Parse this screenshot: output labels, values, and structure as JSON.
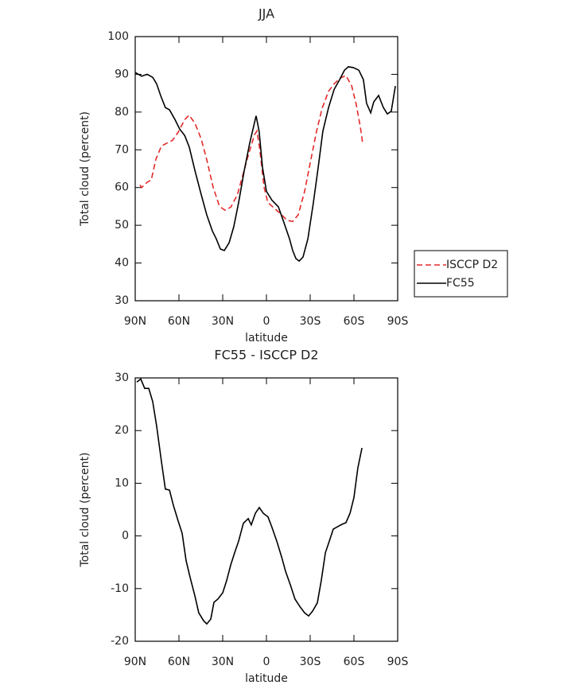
{
  "chart_data": [
    {
      "type": "line",
      "title": "JJA",
      "x_label": "latitude",
      "y_label": "Total cloud (percent)",
      "xlim": [
        90,
        -90
      ],
      "xticks": [
        {
          "value": 90,
          "label": "90N"
        },
        {
          "value": 60,
          "label": "60N"
        },
        {
          "value": 30,
          "label": "30N"
        },
        0,
        {
          "value": -30,
          "label": "30S"
        },
        {
          "value": -60,
          "label": "60S"
        },
        {
          "value": -90,
          "label": "90S"
        }
      ],
      "ylim": [
        30,
        100
      ],
      "yticks": [
        30,
        40,
        50,
        60,
        70,
        80,
        90,
        100
      ],
      "legend": "right",
      "series": [
        {
          "name": "ISCCP D2",
          "color": "#e32b2b",
          "line_style": "dashed",
          "x": [
            86.7,
            85.6,
            81.8,
            79,
            75.8,
            72,
            68,
            64.4,
            60.5,
            56,
            53,
            49,
            44.7,
            41,
            36.5,
            32.2,
            28.4,
            24.5,
            20,
            16.4,
            12.5,
            8.2,
            6.5,
            4.4,
            1.6,
            -1,
            -5.5,
            -9.8,
            -14.2,
            -18,
            -21.8,
            -26.2,
            -30,
            -34.4,
            -38.2,
            -42.6,
            -46.4,
            -50.7,
            -54.5,
            -58.4,
            -61.6,
            -64.4,
            -66
          ],
          "values": [
            60.7,
            60,
            61.4,
            62,
            67.5,
            71,
            71.8,
            72.5,
            74.7,
            78,
            79.2,
            77,
            72.8,
            67.5,
            60,
            55,
            54,
            54.8,
            58,
            63,
            68.5,
            74,
            75,
            69.6,
            60,
            56,
            54.5,
            53,
            51.3,
            51,
            52.8,
            59,
            66.5,
            75,
            81,
            85.5,
            87.5,
            89,
            89.7,
            87,
            82,
            76,
            71.7
          ]
        },
        {
          "name": "FC55",
          "color": "#000000",
          "line_style": "solid",
          "x": [
            90,
            85.6,
            81.8,
            78,
            75.3,
            72.5,
            69.3,
            66.5,
            62.7,
            59.5,
            56.1,
            52.9,
            49,
            45.3,
            40.9,
            37.1,
            34.4,
            31.6,
            28.9,
            25.6,
            22.4,
            19.1,
            15.3,
            11.5,
            7.1,
            5,
            2.7,
            0,
            -3.8,
            -8.2,
            -12,
            -15.8,
            -18,
            -20.2,
            -22.4,
            -25.1,
            -28.4,
            -32.2,
            -35.5,
            -38.7,
            -42.6,
            -46.4,
            -50.2,
            -53.5,
            -56.2,
            -59.5,
            -63.3,
            -66.5,
            -68.7,
            -71.5,
            -73.6,
            -76.9,
            -80.2,
            -82.9,
            -85.6,
            -88.4
          ],
          "values": [
            90.5,
            89.5,
            90,
            89.2,
            87.5,
            84.3,
            81.2,
            80.6,
            78,
            75.5,
            73.8,
            70.7,
            64.4,
            59,
            52.7,
            48.5,
            46.4,
            43.7,
            43.3,
            45.4,
            49.6,
            56,
            64.4,
            71.7,
            79,
            74.9,
            65.4,
            59,
            56.6,
            54.9,
            50.7,
            46.4,
            43.3,
            41.2,
            40.5,
            41.6,
            46.4,
            56,
            65.4,
            74.9,
            81.2,
            86,
            88.6,
            91.1,
            92,
            91.8,
            91.1,
            88.6,
            82.3,
            79.8,
            82.7,
            84.4,
            81.2,
            79.5,
            80.2,
            86.9
          ]
        }
      ]
    },
    {
      "type": "line",
      "title": "FC55 - ISCCP D2",
      "x_label": "latitude",
      "y_label": "Total cloud (percent)",
      "xlim": [
        90,
        -90
      ],
      "xticks": [
        {
          "value": 90,
          "label": "90N"
        },
        {
          "value": 60,
          "label": "60N"
        },
        {
          "value": 30,
          "label": "30N"
        },
        0,
        {
          "value": -30,
          "label": "30S"
        },
        {
          "value": -60,
          "label": "60S"
        },
        {
          "value": -90,
          "label": "90S"
        }
      ],
      "ylim": [
        -20,
        30
      ],
      "yticks": [
        -20,
        -10,
        0,
        10,
        20,
        30
      ],
      "series": [
        {
          "color": "#000000",
          "line_style": "solid",
          "x": [
            88.9,
            86.2,
            83.5,
            80.7,
            78,
            75.3,
            72,
            69.3,
            66.5,
            63.8,
            60.5,
            57.8,
            55.1,
            52.4,
            49,
            46.4,
            43.1,
            40.9,
            38.2,
            36,
            33.3,
            30,
            27.3,
            24.5,
            21.8,
            19.1,
            15.8,
            12.5,
            10.4,
            7.6,
            4.9,
            2.2,
            -1.1,
            -3.8,
            -7.1,
            -10.4,
            -13.1,
            -16.4,
            -19.6,
            -22.9,
            -26.2,
            -28.9,
            -31.6,
            -34.9,
            -37.6,
            -40.4,
            -43.1,
            -45.8,
            -49.1,
            -51.8,
            -54.5,
            -57.3,
            -60,
            -62.7,
            -65.5
          ],
          "values": [
            29.2,
            29.8,
            28,
            28,
            25.5,
            20.9,
            14.1,
            8.9,
            8.7,
            5.8,
            2.8,
            0.5,
            -4.7,
            -7.8,
            -11.5,
            -14.6,
            -16.1,
            -16.7,
            -15.8,
            -12.6,
            -12,
            -10.8,
            -8.5,
            -5.5,
            -3.2,
            -1,
            2.4,
            3.3,
            2.1,
            4.3,
            5.4,
            4.3,
            3.6,
            1.6,
            -1,
            -4,
            -6.7,
            -9.3,
            -12,
            -13.4,
            -14.6,
            -15.2,
            -14.3,
            -12.7,
            -8.5,
            -3.2,
            -1,
            1.3,
            1.8,
            2.2,
            2.5,
            4.3,
            7.3,
            12.9,
            16.7
          ]
        }
      ]
    }
  ]
}
